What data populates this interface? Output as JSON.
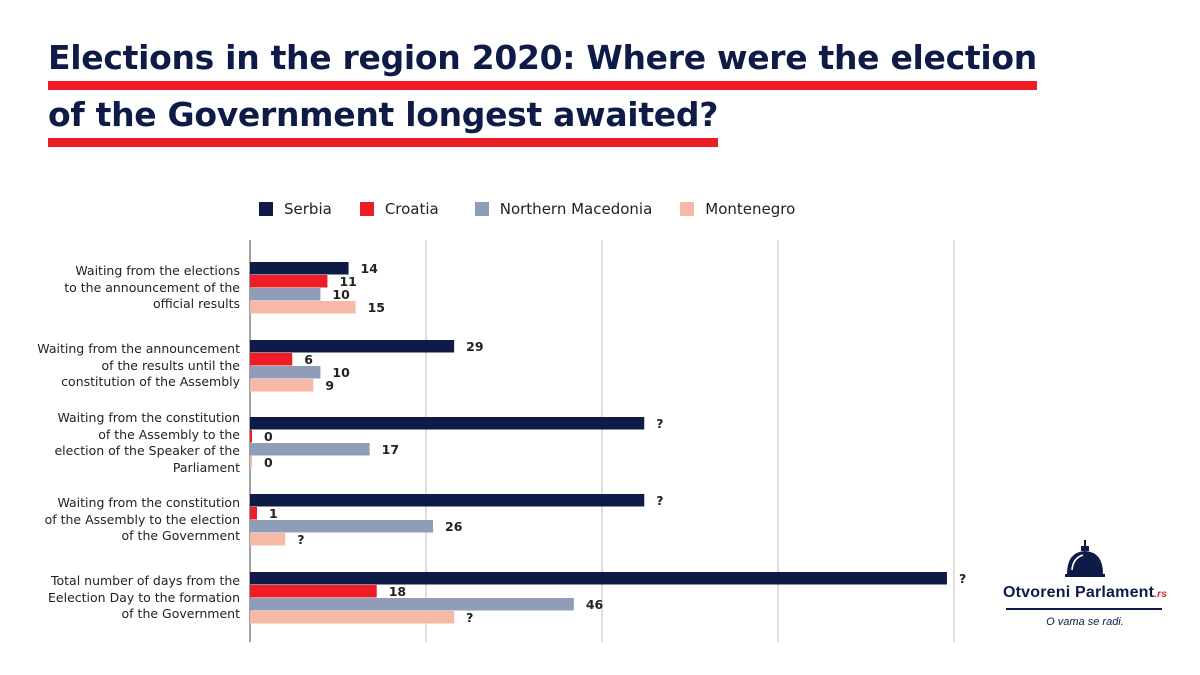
{
  "title": {
    "line1": "Elections in the region 2020: Where were the election",
    "line2": "of the Government longest awaited?"
  },
  "colors": {
    "serbia": "#0d1b46",
    "croatia": "#ee1c25",
    "macedonia": "#8f9db9",
    "montenegro": "#f7b9a5",
    "grid": "#bdbdbd",
    "accent": "#ee1c25"
  },
  "logo": {
    "name": "Otvoreni Parlament",
    "suffix": ".rs",
    "tagline": "O vama se radi."
  },
  "chart_data": {
    "type": "bar",
    "orientation": "horizontal",
    "categories": [
      "Waiting from the elections to the announcement of the official results",
      "Waiting from the announcement of the results until the constitution of the Assembly",
      "Waiting from the constitution of the Assembly to the election of the Speaker of the Parliament",
      "Waiting from the constitution of the Assembly to the election of the Government",
      "Total number of days from the Eelection Day to the formation of the Government"
    ],
    "category_lines": [
      [
        "Waiting from the elections",
        "to the announcement of the",
        "official results"
      ],
      [
        "Waiting from the announcement",
        "of the results until the",
        "constitution of the Assembly"
      ],
      [
        "Waiting from the constitution",
        "of the Assembly to the",
        "election of the Speaker of the",
        "Parliament"
      ],
      [
        "Waiting from the constitution",
        "of the Assembly to the election",
        "of the Government"
      ],
      [
        "Total number of days from the",
        "Eelection Day to the formation",
        "of the Government"
      ]
    ],
    "series": [
      {
        "name": "Serbia",
        "color": "#0d1b46",
        "values": [
          14,
          29,
          56,
          56,
          99
        ],
        "labels": [
          "14",
          "29",
          "?",
          "?",
          "?"
        ]
      },
      {
        "name": "Croatia",
        "color": "#ee1c25",
        "values": [
          11,
          6,
          0,
          1,
          18
        ],
        "labels": [
          "11",
          "6",
          "0",
          "1",
          "18"
        ]
      },
      {
        "name": "Northern Macedonia",
        "color": "#8f9db9",
        "values": [
          10,
          10,
          17,
          26,
          46
        ],
        "labels": [
          "10",
          "10",
          "17",
          "26",
          "46"
        ]
      },
      {
        "name": "Montenegro",
        "color": "#f7b9a5",
        "values": [
          15,
          9,
          0,
          5,
          29
        ],
        "labels": [
          "15",
          "9",
          "0",
          "?",
          "?"
        ]
      }
    ],
    "xlim": [
      0,
      100
    ],
    "grid": true,
    "legend_position": "top",
    "title": "Elections in the region 2020: Where were the election of the Government longest awaited?"
  }
}
